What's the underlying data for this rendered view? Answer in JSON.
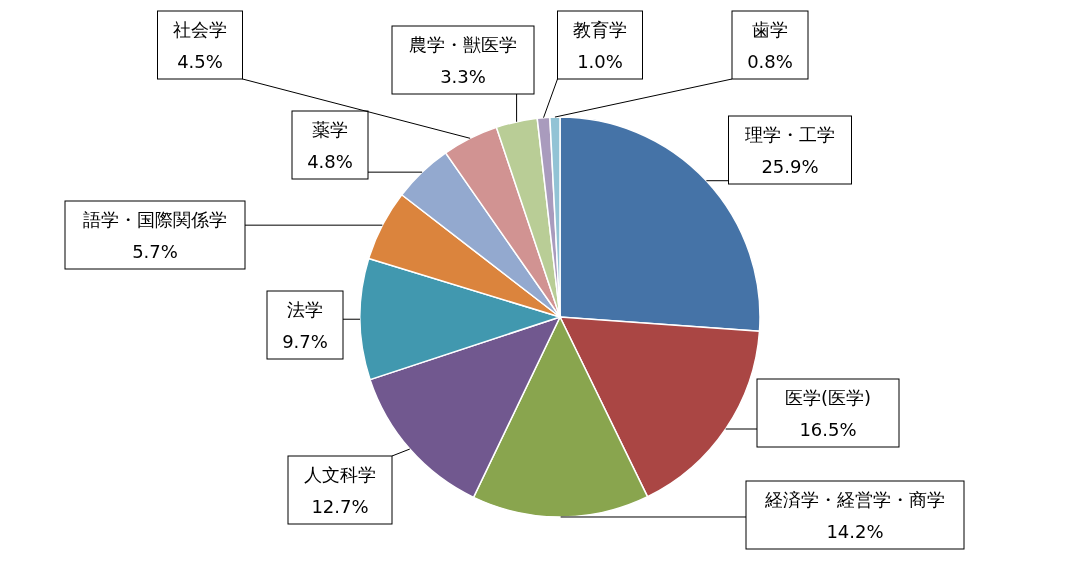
{
  "chart_data": {
    "type": "pie",
    "categories": [
      "理学・工学",
      "医学(医学)",
      "経済学・経営学・商学",
      "人文科学",
      "法学",
      "語学・国際関係学",
      "薬学",
      "社会学",
      "農学・獣医学",
      "教育学",
      "歯学"
    ],
    "values": [
      25.9,
      16.5,
      14.2,
      12.7,
      9.7,
      5.7,
      4.8,
      4.5,
      3.3,
      1.0,
      0.8
    ],
    "colors": [
      "#4573a7",
      "#aa4644",
      "#89a54e",
      "#71588f",
      "#4198af",
      "#db843d",
      "#93a9cf",
      "#d19392",
      "#b9cd96",
      "#a99bbd",
      "#92c3d5"
    ],
    "value_labels": [
      "25.9%",
      "16.5%",
      "14.2%",
      "12.7%",
      "9.7%",
      "5.7%",
      "4.8%",
      "4.5%",
      "3.3%",
      "1.0%",
      "0.8%"
    ]
  }
}
